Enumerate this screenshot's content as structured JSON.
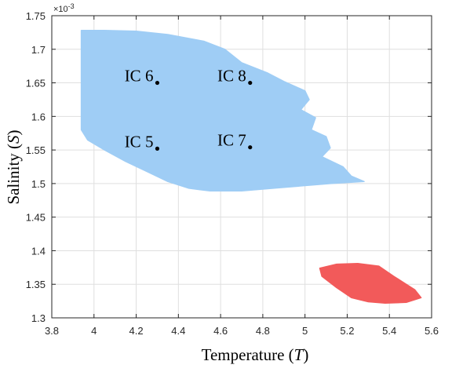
{
  "chart_data": {
    "type": "scatter",
    "title": "",
    "xlabel": "Temperature (T)",
    "xlabel_main": "Temperature (",
    "xlabel_var": "T",
    "xlabel_close": ")",
    "ylabel": "Salinity (S)",
    "ylabel_main": "Salinity (",
    "ylabel_var": "S",
    "ylabel_close": ")",
    "xlim": [
      3.8,
      5.6
    ],
    "ylim": [
      1.3,
      1.75
    ],
    "y_exponent_label": "×10",
    "y_exponent_power": "-3",
    "grid": true,
    "x_ticks": [
      {
        "value": 3.8,
        "label": "3.8"
      },
      {
        "value": 4.0,
        "label": "4"
      },
      {
        "value": 4.2,
        "label": "4.2"
      },
      {
        "value": 4.4,
        "label": "4.4"
      },
      {
        "value": 4.6,
        "label": "4.6"
      },
      {
        "value": 4.8,
        "label": "4.8"
      },
      {
        "value": 5.0,
        "label": "5"
      },
      {
        "value": 5.2,
        "label": "5.2"
      },
      {
        "value": 5.4,
        "label": "5.4"
      },
      {
        "value": 5.6,
        "label": "5.6"
      }
    ],
    "y_ticks": [
      {
        "value": 1.3,
        "label": "1.3"
      },
      {
        "value": 1.35,
        "label": "1.35"
      },
      {
        "value": 1.4,
        "label": "1.4"
      },
      {
        "value": 1.45,
        "label": "1.45"
      },
      {
        "value": 1.5,
        "label": "1.5"
      },
      {
        "value": 1.55,
        "label": "1.55"
      },
      {
        "value": 1.6,
        "label": "1.6"
      },
      {
        "value": 1.65,
        "label": "1.65"
      },
      {
        "value": 1.7,
        "label": "1.7"
      },
      {
        "value": 1.75,
        "label": "1.75"
      }
    ],
    "regions": [
      {
        "color": "#9fcdf5",
        "outline": [
          [
            3.94,
            1.728
          ],
          [
            4.05,
            1.728
          ],
          [
            4.2,
            1.727
          ],
          [
            4.35,
            1.722
          ],
          [
            4.52,
            1.712
          ],
          [
            4.62,
            1.7
          ],
          [
            4.7,
            1.68
          ],
          [
            4.82,
            1.665
          ],
          [
            4.9,
            1.652
          ],
          [
            5.0,
            1.638
          ],
          [
            5.02,
            1.625
          ],
          [
            4.98,
            1.61
          ],
          [
            5.05,
            1.598
          ],
          [
            5.03,
            1.58
          ],
          [
            5.1,
            1.57
          ],
          [
            5.12,
            1.553
          ],
          [
            5.08,
            1.54
          ],
          [
            5.18,
            1.525
          ],
          [
            5.22,
            1.511
          ],
          [
            5.28,
            1.503
          ],
          [
            5.12,
            1.5
          ],
          [
            5.0,
            1.497
          ],
          [
            4.85,
            1.493
          ],
          [
            4.7,
            1.489
          ],
          [
            4.55,
            1.489
          ],
          [
            4.45,
            1.493
          ],
          [
            4.35,
            1.503
          ],
          [
            4.25,
            1.518
          ],
          [
            4.15,
            1.533
          ],
          [
            4.05,
            1.55
          ],
          [
            3.97,
            1.565
          ],
          [
            3.94,
            1.58
          ],
          [
            3.94,
            1.65
          ]
        ]
      },
      {
        "color": "#f25a5a",
        "outline": [
          [
            5.07,
            1.374
          ],
          [
            5.15,
            1.38
          ],
          [
            5.25,
            1.381
          ],
          [
            5.35,
            1.377
          ],
          [
            5.42,
            1.362
          ],
          [
            5.48,
            1.35
          ],
          [
            5.52,
            1.342
          ],
          [
            5.55,
            1.33
          ],
          [
            5.48,
            1.323
          ],
          [
            5.38,
            1.322
          ],
          [
            5.3,
            1.324
          ],
          [
            5.22,
            1.33
          ],
          [
            5.15,
            1.345
          ],
          [
            5.08,
            1.362
          ]
        ]
      }
    ],
    "points": [
      {
        "label": "IC 6",
        "x": 4.3,
        "y": 1.65
      },
      {
        "label": "IC 8",
        "x": 4.74,
        "y": 1.65
      },
      {
        "label": "IC 5",
        "x": 4.3,
        "y": 1.552
      },
      {
        "label": "IC 7",
        "x": 4.74,
        "y": 1.554
      }
    ]
  }
}
